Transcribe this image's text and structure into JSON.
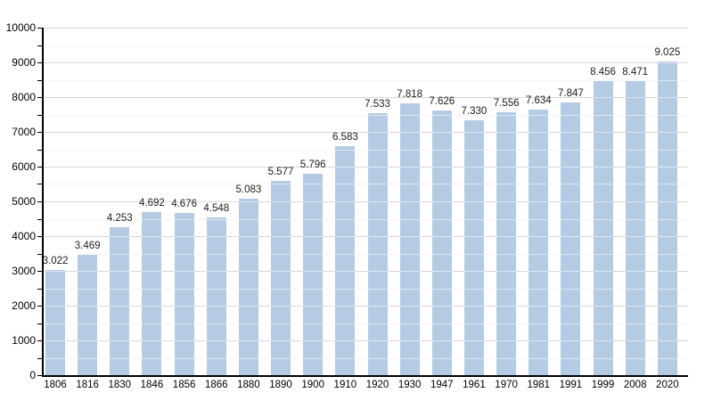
{
  "chart_data": {
    "type": "bar",
    "title": "",
    "xlabel": "",
    "ylabel": "",
    "ylim": [
      0,
      10000
    ],
    "y_major_step": 1000,
    "y_minor_step": 500,
    "y_tick_labels": [
      "0",
      "1000",
      "2000",
      "3000",
      "4000",
      "5000",
      "6000",
      "7000",
      "8000",
      "9000",
      "10000"
    ],
    "categories": [
      "1806",
      "1816",
      "1830",
      "1846",
      "1856",
      "1866",
      "1880",
      "1890",
      "1900",
      "1910",
      "1920",
      "1930",
      "1947",
      "1961",
      "1970",
      "1981",
      "1991",
      "1999",
      "2008",
      "2020"
    ],
    "values": [
      3022,
      3469,
      4253,
      4692,
      4676,
      4548,
      5083,
      5577,
      5796,
      6583,
      7533,
      7818,
      7626,
      7330,
      7556,
      7634,
      7847,
      8456,
      8471,
      9025
    ],
    "value_labels": [
      "3.022",
      "3.469",
      "4.253",
      "4.692",
      "4.676",
      "4.548",
      "5.083",
      "5.577",
      "5.796",
      "6.583",
      "7.533",
      "7.818",
      "7.626",
      "7.330",
      "7.556",
      "7.634",
      "7.847",
      "8.456",
      "8.471",
      "9.025"
    ],
    "grid": true,
    "grid_over_bars": true,
    "legend": false,
    "colors": {
      "bar": "#b4cbe3",
      "major_grid": "#a9a9a9",
      "minor_grid": "#ececec",
      "axis": "#000000",
      "value_text": "#1c1c1c",
      "tick_text": "#000000",
      "background": "#ffffff"
    }
  }
}
